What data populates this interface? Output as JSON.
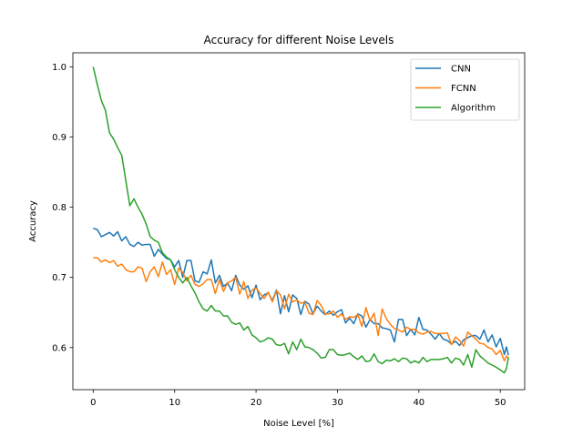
{
  "chart_data": {
    "type": "line",
    "title": "Accuracy for different Noise Levels",
    "xlabel": "Noise Level [%]",
    "ylabel": "Accuracy",
    "xlim": [
      -2.5,
      53
    ],
    "ylim": [
      0.54,
      1.02
    ],
    "xticks": [
      0,
      10,
      20,
      30,
      40,
      50
    ],
    "yticks": [
      0.6,
      0.7,
      0.8,
      0.9,
      1.0
    ],
    "ytick_labels": [
      "0.6",
      "0.7",
      "0.8",
      "0.9",
      "1.0"
    ],
    "grid": false,
    "legend_position": "upper right",
    "x": [
      0,
      0.5,
      1,
      1.5,
      2,
      2.5,
      3,
      3.5,
      4,
      4.5,
      5,
      5.5,
      6,
      6.5,
      7,
      7.5,
      8,
      8.5,
      9,
      9.5,
      10,
      10.5,
      11,
      11.5,
      12,
      12.5,
      13,
      13.5,
      14,
      14.5,
      15,
      15.5,
      16,
      16.5,
      17,
      17.5,
      18,
      18.5,
      19,
      19.5,
      20,
      20.5,
      21,
      21.5,
      22,
      22.5,
      23,
      23.5,
      24,
      24.5,
      25,
      25.5,
      26,
      26.5,
      27,
      27.5,
      28,
      28.5,
      29,
      29.5,
      30,
      30.5,
      31,
      31.5,
      32,
      32.5,
      33,
      33.5,
      34,
      34.5,
      35,
      35.5,
      36,
      36.5,
      37,
      37.5,
      38,
      38.5,
      39,
      39.5,
      40,
      40.5,
      41,
      41.5,
      42,
      42.5,
      43,
      43.5,
      44,
      44.5,
      45,
      45.5,
      46,
      46.5,
      47,
      47.5,
      48,
      48.5,
      49,
      49.5,
      50,
      50.5
    ],
    "series": [
      {
        "name": "CNN",
        "color": "#1f77b4",
        "values": [
          0.77,
          0.768,
          0.758,
          0.761,
          0.764,
          0.759,
          0.765,
          0.752,
          0.758,
          0.747,
          0.744,
          0.75,
          0.746,
          0.747,
          0.747,
          0.73,
          0.74,
          0.733,
          0.727,
          0.725,
          0.715,
          0.724,
          0.7,
          0.724,
          0.724,
          0.695,
          0.693,
          0.708,
          0.705,
          0.725,
          0.692,
          0.703,
          0.687,
          0.692,
          0.681,
          0.703,
          0.689,
          0.683,
          0.688,
          0.671,
          0.689,
          0.668,
          0.675,
          0.678,
          0.667,
          0.682,
          0.648,
          0.674,
          0.651,
          0.675,
          0.67,
          0.647,
          0.666,
          0.662,
          0.648,
          0.659,
          0.652,
          0.647,
          0.652,
          0.646,
          0.651,
          0.654,
          0.635,
          0.642,
          0.634,
          0.648,
          0.645,
          0.629,
          0.64,
          0.634,
          0.634,
          0.628,
          0.627,
          0.625,
          0.608,
          0.64,
          0.64,
          0.617,
          0.626,
          0.618,
          0.643,
          0.626,
          0.625,
          0.619,
          0.612,
          0.62,
          0.612,
          0.61,
          0.605,
          0.609,
          0.603,
          0.611,
          0.614,
          0.617,
          0.617,
          0.612,
          0.625,
          0.608,
          0.618,
          0.601,
          0.613,
          0.59
        ],
        "extra_values": [
          0.601,
          0.589
        ]
      },
      {
        "name": "FCNN",
        "color": "#ff7f0e",
        "values": [
          0.728,
          0.728,
          0.722,
          0.725,
          0.721,
          0.724,
          0.716,
          0.719,
          0.711,
          0.708,
          0.708,
          0.715,
          0.713,
          0.694,
          0.708,
          0.715,
          0.701,
          0.722,
          0.704,
          0.711,
          0.69,
          0.713,
          0.707,
          0.695,
          0.703,
          0.69,
          0.687,
          0.691,
          0.697,
          0.697,
          0.677,
          0.697,
          0.68,
          0.692,
          0.695,
          0.7,
          0.676,
          0.694,
          0.67,
          0.682,
          0.685,
          0.677,
          0.67,
          0.679,
          0.665,
          0.681,
          0.675,
          0.655,
          0.676,
          0.665,
          0.668,
          0.663,
          0.665,
          0.649,
          0.647,
          0.667,
          0.66,
          0.648,
          0.648,
          0.652,
          0.643,
          0.648,
          0.64,
          0.644,
          0.643,
          0.647,
          0.63,
          0.657,
          0.638,
          0.649,
          0.617,
          0.655,
          0.641,
          0.633,
          0.627,
          0.625,
          0.622,
          0.629,
          0.626,
          0.626,
          0.621,
          0.619,
          0.622,
          0.623,
          0.62,
          0.62,
          0.62,
          0.621,
          0.604,
          0.615,
          0.61,
          0.602,
          0.622,
          0.617,
          0.612,
          0.606,
          0.605,
          0.6,
          0.598,
          0.59,
          0.596,
          0.581
        ],
        "extra_values": [
          0.588,
          0.585
        ]
      },
      {
        "name": "Algorithm",
        "color": "#2ca02c",
        "values": [
          1.0,
          0.975,
          0.952,
          0.938,
          0.906,
          0.897,
          0.885,
          0.874,
          0.838,
          0.802,
          0.812,
          0.8,
          0.79,
          0.776,
          0.758,
          0.753,
          0.75,
          0.735,
          0.729,
          0.725,
          0.711,
          0.7,
          0.692,
          0.7,
          0.688,
          0.678,
          0.665,
          0.655,
          0.652,
          0.66,
          0.652,
          0.652,
          0.645,
          0.645,
          0.636,
          0.633,
          0.635,
          0.625,
          0.63,
          0.618,
          0.614,
          0.608,
          0.61,
          0.614,
          0.612,
          0.604,
          0.603,
          0.606,
          0.591,
          0.608,
          0.597,
          0.612,
          0.601,
          0.6,
          0.597,
          0.592,
          0.585,
          0.586,
          0.597,
          0.597,
          0.59,
          0.589,
          0.59,
          0.592,
          0.587,
          0.583,
          0.588,
          0.58,
          0.581,
          0.591,
          0.58,
          0.577,
          0.582,
          0.581,
          0.584,
          0.58,
          0.585,
          0.584,
          0.578,
          0.581,
          0.578,
          0.586,
          0.58,
          0.583,
          0.583,
          0.583,
          0.584,
          0.586,
          0.578,
          0.585,
          0.583,
          0.575,
          0.59,
          0.572,
          0.597,
          0.588,
          0.583,
          0.578,
          0.575,
          0.572,
          0.568,
          0.564
        ],
        "extra_values": [
          0.57,
          0.586
        ]
      }
    ]
  }
}
